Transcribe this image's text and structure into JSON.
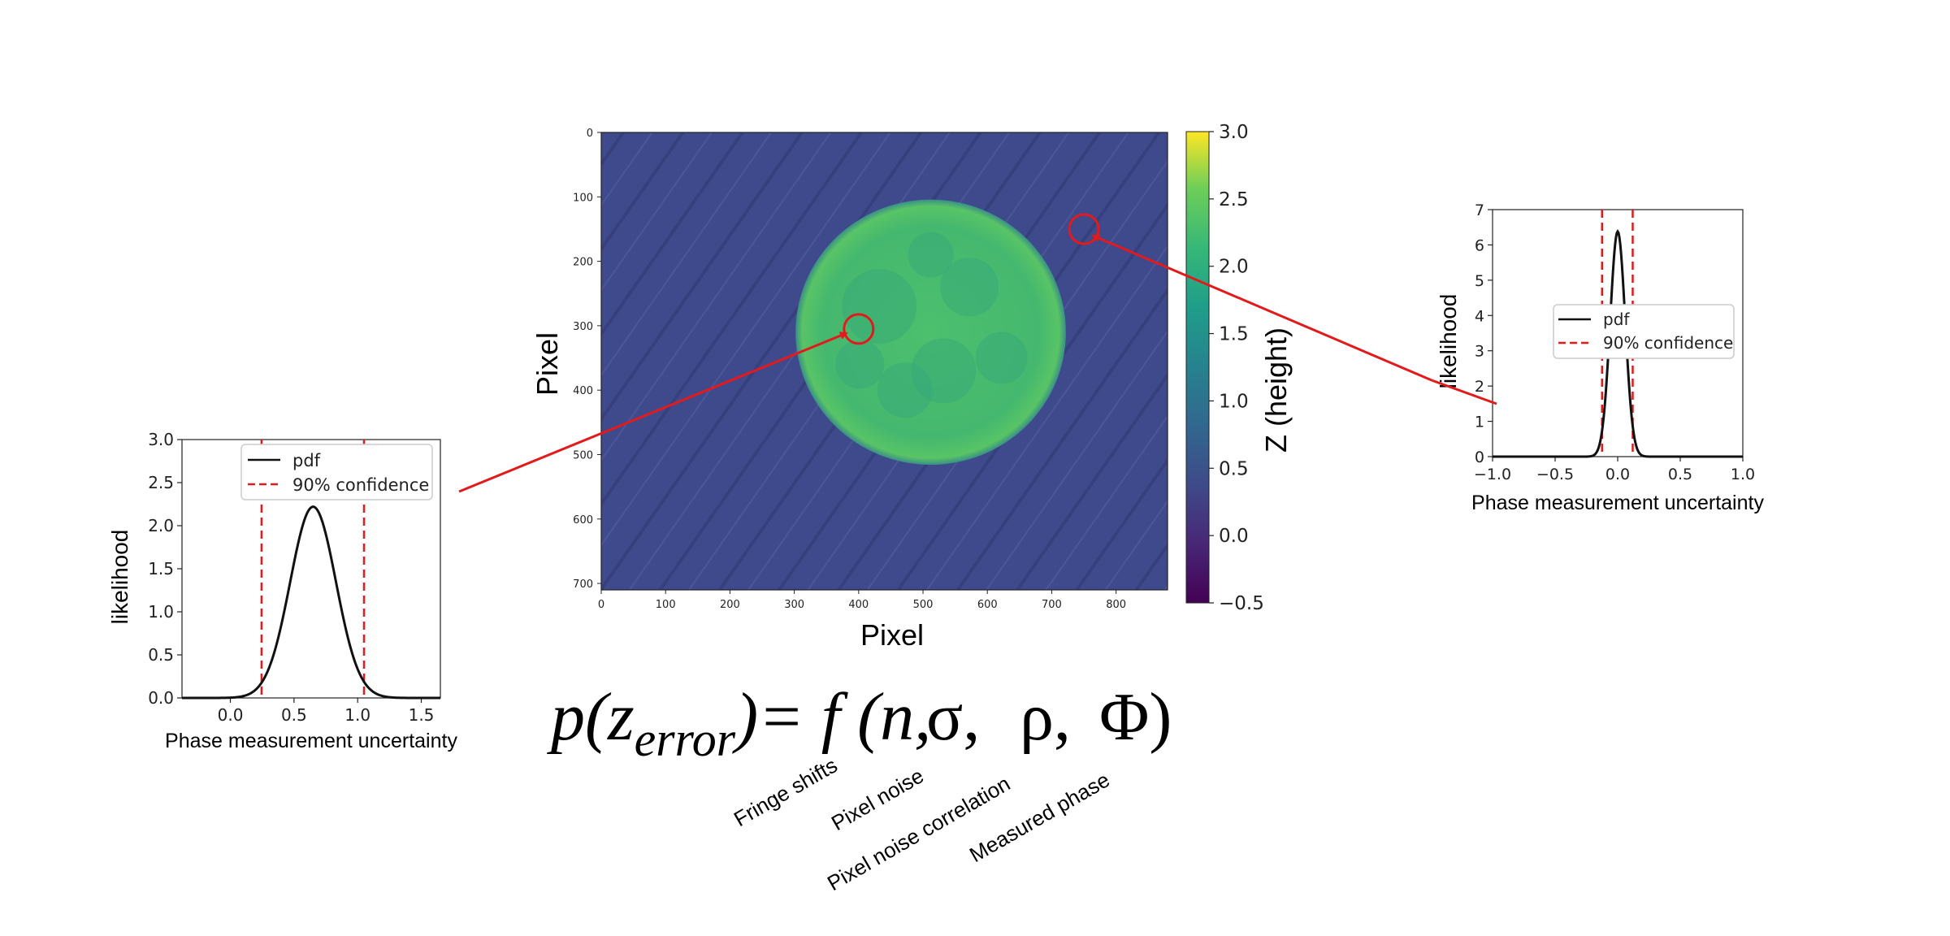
{
  "chart_data": [
    {
      "type": "heatmap",
      "xlabel": "Pixel",
      "ylabel": "Pixel",
      "x_ticks": [
        "0",
        "100",
        "200",
        "300",
        "400",
        "500",
        "600",
        "700",
        "800"
      ],
      "y_ticks": [
        "0",
        "100",
        "200",
        "300",
        "400",
        "500",
        "600",
        "700"
      ],
      "xlim": [
        0,
        880
      ],
      "ylim": [
        710,
        0
      ],
      "image": {
        "background_value": 0.0,
        "disk_value": 1.9,
        "disk_center": [
          512,
          310
        ],
        "disk_radius": 210,
        "stripe_direction": "diagonal"
      },
      "colorbar": {
        "label": "Z (height)",
        "ticks": [
          "3.0",
          "2.5",
          "2.0",
          "1.5",
          "1.0",
          "0.5",
          "0.0",
          "−0.5"
        ],
        "range": [
          -0.5,
          3.0
        ],
        "colormap": "viridis"
      },
      "markers": [
        {
          "x": 400,
          "y": 305,
          "color": "#e31a1c"
        },
        {
          "x": 750,
          "y": 150,
          "color": "#e31a1c"
        }
      ]
    },
    {
      "type": "line",
      "xlabel": "Phase measurement uncertainty",
      "ylabel": "likelihood",
      "x_ticks": [
        "0.0",
        "0.5",
        "1.0",
        "1.5"
      ],
      "y_ticks": [
        "0.0",
        "0.5",
        "1.0",
        "1.5",
        "2.0",
        "2.5",
        "3.0"
      ],
      "xlim": [
        -0.38,
        1.65
      ],
      "ylim": [
        0,
        3.0
      ],
      "series": [
        {
          "name": "pdf",
          "mean": 0.65,
          "std": 0.18,
          "peak": 2.22
        },
        {
          "name": "90% confidence",
          "x": [
            0.245,
            1.05
          ]
        }
      ],
      "legend": "top-right"
    },
    {
      "type": "line",
      "xlabel": "Phase measurement uncertainty",
      "ylabel": "likelihood",
      "x_ticks": [
        "−1.0",
        "−0.5",
        "0.0",
        "0.5",
        "1.0"
      ],
      "y_ticks": [
        "0",
        "1",
        "2",
        "3",
        "4",
        "5",
        "6",
        "7"
      ],
      "xlim": [
        -1.0,
        1.0
      ],
      "ylim": [
        0,
        7
      ],
      "series": [
        {
          "name": "pdf",
          "mean": 0.0,
          "std": 0.06,
          "peak": 6.38
        },
        {
          "name": "90% confidence",
          "x": [
            -0.125,
            0.12
          ]
        }
      ],
      "legend": "center-left"
    }
  ],
  "formula": {
    "p": "p(z",
    "sub": "error",
    "close": ")",
    "eq": "= f (",
    "n": "n,",
    "sigma": "σ,",
    "rho": "ρ,",
    "phi": "Φ)"
  },
  "annotations": [
    {
      "text": "Fringe shifts"
    },
    {
      "text": "Pixel noise"
    },
    {
      "text": "Pixel noise correlation"
    },
    {
      "text": "Measured phase"
    }
  ],
  "colors": {
    "pdf": "#111111",
    "confidence": "#e31a1c",
    "arrow": "#e31a1c"
  }
}
